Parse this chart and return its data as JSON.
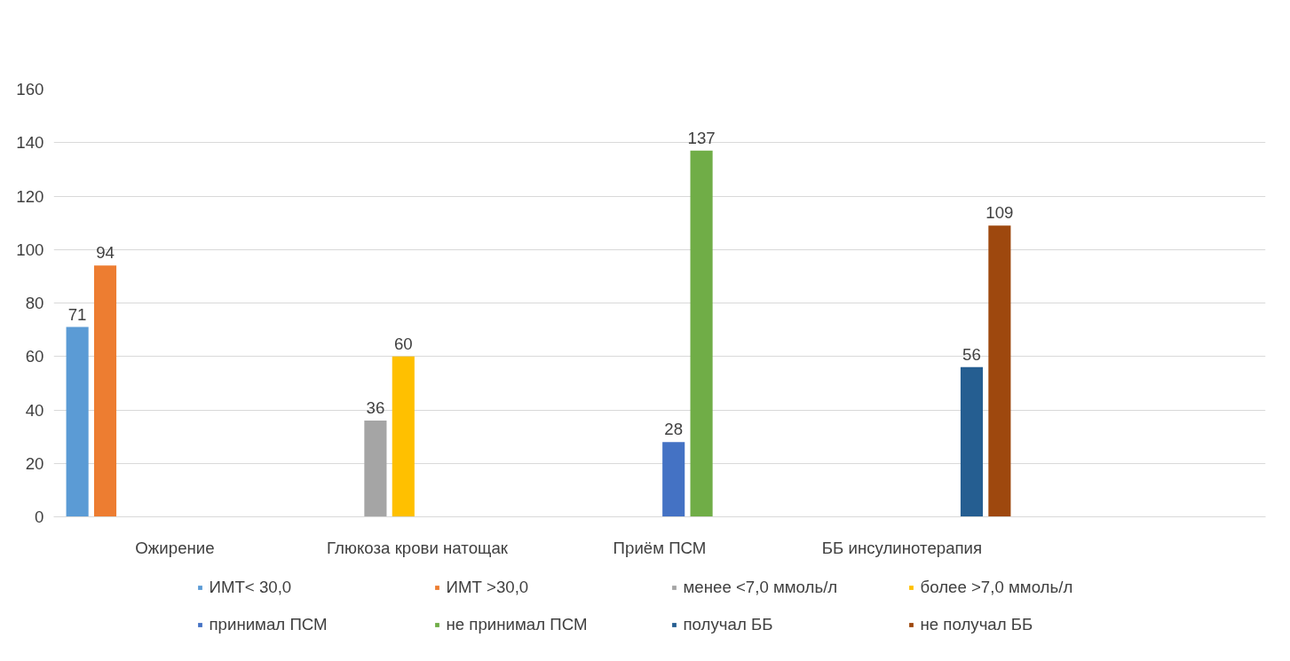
{
  "chart_data": {
    "type": "bar",
    "categories": [
      "Ожирение",
      "Глюкоза крови натощак",
      "Приём ПСМ",
      "ББ инсулинотерапия",
      null
    ],
    "series": [
      {
        "name": "ИМТ< 30,0",
        "color": "#5b9bd5",
        "values": [
          71,
          null,
          null,
          null,
          null
        ]
      },
      {
        "name": "ИМТ >30,0",
        "color": "#ed7d31",
        "values": [
          94,
          null,
          null,
          null,
          null
        ]
      },
      {
        "name": "менее <7,0 ммоль/л",
        "color": "#a5a5a5",
        "values": [
          null,
          36,
          null,
          null,
          null
        ]
      },
      {
        "name": "более >7,0 ммоль/л",
        "color": "#ffc000",
        "values": [
          null,
          60,
          null,
          null,
          null
        ]
      },
      {
        "name": "принимал ПСМ",
        "color": "#4472c4",
        "values": [
          null,
          null,
          28,
          null,
          null
        ]
      },
      {
        "name": "не принимал ПСМ",
        "color": "#70ad47",
        "values": [
          null,
          null,
          137,
          null,
          null
        ]
      },
      {
        "name": "получал ББ",
        "color": "#255e91",
        "values": [
          null,
          null,
          null,
          56,
          null
        ]
      },
      {
        "name": "не получал ББ",
        "color": "#9e480e",
        "values": [
          null,
          null,
          null,
          109,
          null
        ]
      }
    ],
    "ylim": [
      0,
      160
    ],
    "yticks": [
      0,
      20,
      40,
      60,
      80,
      100,
      120,
      140,
      160
    ],
    "grid": "y",
    "legend": "bottom",
    "data_labels": true
  }
}
